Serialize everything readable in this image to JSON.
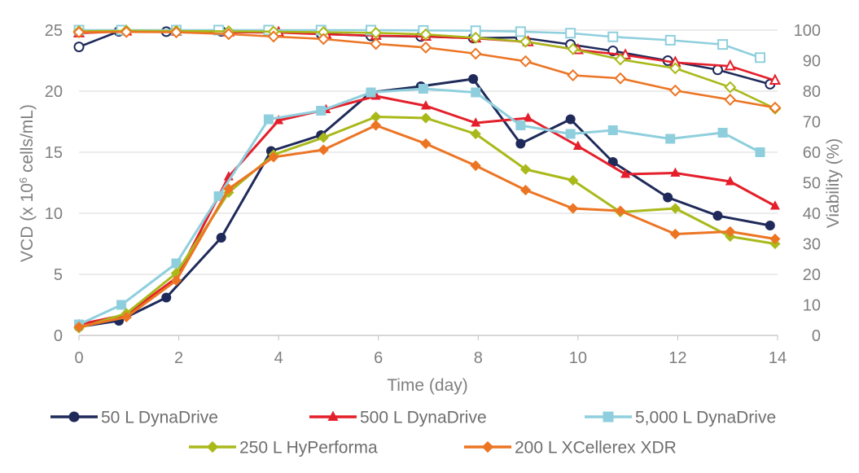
{
  "chart_data": {
    "type": "line",
    "xlabel": "Time (day)",
    "ylabel_left_prefix": "VCD (x 10",
    "ylabel_left_sup": "6",
    "ylabel_left_suffix": " cells/mL)",
    "ylabel_right": "Viability (%)",
    "xlim": [
      0,
      14
    ],
    "ylim_left": [
      0,
      25
    ],
    "ylim_right": [
      0,
      100
    ],
    "x_ticks": [
      0,
      2,
      4,
      6,
      8,
      10,
      12,
      14
    ],
    "y_ticks_left": [
      0,
      5,
      10,
      15,
      20,
      25
    ],
    "y_ticks_right": [
      0,
      10,
      20,
      30,
      40,
      50,
      60,
      70,
      80,
      90,
      100
    ],
    "legend_position": "bottom",
    "series": [
      {
        "name": "50 L DynaDrive",
        "color": "#1f2a5a",
        "marker": "circle",
        "vcd": {
          "x": [
            0,
            0.8,
            1.75,
            2.85,
            3.85,
            4.85,
            5.85,
            6.85,
            7.9,
            8.85,
            9.85,
            10.7,
            11.8,
            12.8,
            13.85
          ],
          "y": [
            0.7,
            1.2,
            3.1,
            8.0,
            15.1,
            16.4,
            19.9,
            20.4,
            21.0,
            15.7,
            17.7,
            14.2,
            11.3,
            9.8,
            9.0
          ]
        },
        "viability": {
          "x": [
            0,
            0.8,
            1.75,
            2.85,
            3.85,
            4.85,
            5.85,
            6.85,
            7.9,
            8.85,
            9.85,
            10.7,
            11.8,
            12.8,
            13.85
          ],
          "y": [
            94.5,
            99.6,
            99.5,
            99.6,
            99.3,
            98.8,
            98.1,
            97.9,
            97.4,
            97.6,
            95.3,
            93.2,
            90.0,
            87.0,
            82.3
          ]
        }
      },
      {
        "name": "500 L DynaDrive",
        "color": "#e41f2b",
        "marker": "triangle",
        "vcd": {
          "x": [
            0,
            0.95,
            1.95,
            3.0,
            4.0,
            4.95,
            5.95,
            6.95,
            7.95,
            9.0,
            10.0,
            10.95,
            11.95,
            13.05,
            13.95
          ],
          "y": [
            0.9,
            1.7,
            4.7,
            13.0,
            17.6,
            18.5,
            19.6,
            18.8,
            17.4,
            17.8,
            15.5,
            13.2,
            13.3,
            12.6,
            10.6
          ]
        },
        "viability": {
          "x": [
            0,
            0.95,
            1.95,
            3.0,
            4.0,
            4.95,
            5.95,
            6.95,
            7.95,
            9.0,
            10.0,
            10.95,
            11.95,
            13.05,
            13.95
          ],
          "y": [
            99.0,
            99.6,
            99.5,
            99.3,
            99.2,
            98.6,
            98.2,
            97.9,
            97.3,
            96.1,
            93.5,
            91.8,
            89.4,
            88.2,
            83.5
          ]
        }
      },
      {
        "name": "5,000 L DynaDrive",
        "color": "#8fcfdd",
        "marker": "square",
        "vcd": {
          "x": [
            0,
            0.85,
            1.95,
            2.8,
            3.8,
            4.85,
            5.85,
            6.9,
            7.95,
            8.85,
            9.85,
            10.7,
            11.85,
            12.9,
            13.65
          ],
          "y": [
            0.9,
            2.5,
            5.9,
            11.4,
            17.7,
            18.4,
            19.9,
            20.2,
            19.9,
            17.2,
            16.5,
            16.8,
            16.1,
            16.6,
            15.0
          ]
        },
        "viability": {
          "x": [
            0,
            0.85,
            1.95,
            2.8,
            3.8,
            4.85,
            5.85,
            6.9,
            7.95,
            8.85,
            9.85,
            10.7,
            11.85,
            12.9,
            13.65
          ],
          "y": [
            100,
            100,
            100,
            100,
            100,
            100,
            100,
            99.9,
            99.8,
            99.5,
            99.0,
            97.8,
            96.7,
            95.3,
            91.0
          ]
        }
      },
      {
        "name": "250 L HyPerforma",
        "color": "#a9b91a",
        "marker": "diamond",
        "vcd": {
          "x": [
            0,
            0.95,
            1.95,
            3.0,
            3.9,
            4.9,
            5.95,
            6.95,
            7.95,
            8.95,
            9.9,
            10.85,
            11.95,
            13.05,
            13.95
          ],
          "y": [
            0.6,
            1.8,
            5.1,
            11.7,
            14.8,
            16.2,
            17.9,
            17.8,
            16.5,
            13.6,
            12.7,
            10.1,
            10.4,
            8.1,
            7.5
          ]
        },
        "viability": {
          "x": [
            0,
            0.95,
            1.95,
            3.0,
            3.9,
            4.9,
            5.95,
            6.95,
            7.95,
            8.95,
            9.9,
            10.85,
            11.95,
            13.05,
            13.95
          ],
          "y": [
            99.6,
            99.8,
            99.7,
            99.6,
            99.5,
            99.3,
            99.1,
            98.6,
            97.5,
            96.2,
            93.8,
            90.4,
            87.5,
            81.3,
            74.3
          ]
        }
      },
      {
        "name": "200 L XCellerex XDR",
        "color": "#ec7524",
        "marker": "diamond",
        "vcd": {
          "x": [
            0,
            0.95,
            1.95,
            3.0,
            3.9,
            4.9,
            5.95,
            6.95,
            7.95,
            8.95,
            9.9,
            10.85,
            11.95,
            13.05,
            13.95
          ],
          "y": [
            0.7,
            1.5,
            4.5,
            12.0,
            14.6,
            15.2,
            17.2,
            15.7,
            13.9,
            11.9,
            10.4,
            10.2,
            8.3,
            8.5,
            7.9
          ]
        },
        "viability": {
          "x": [
            0,
            0.95,
            1.95,
            3.0,
            3.9,
            4.9,
            5.95,
            6.95,
            7.95,
            8.95,
            9.9,
            10.85,
            11.95,
            13.05,
            13.95
          ],
          "y": [
            99.3,
            99.4,
            99.3,
            98.7,
            97.9,
            97.1,
            95.5,
            94.3,
            92.3,
            89.8,
            85.2,
            84.2,
            80.2,
            77.2,
            74.6
          ]
        }
      }
    ]
  }
}
